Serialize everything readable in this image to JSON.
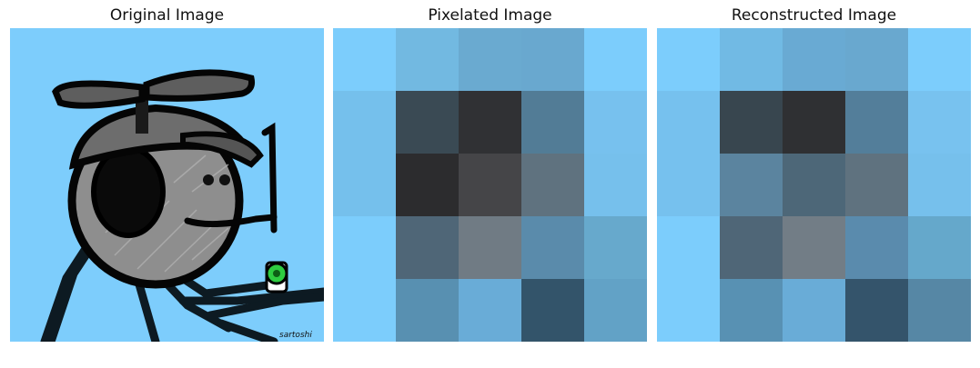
{
  "titles": {
    "original": "Original Image",
    "pixelated": "Pixelated Image",
    "reconstructed": "Reconstructed Image"
  },
  "original": {
    "background_color": "#7dcdfc",
    "signature": "sartoshi"
  },
  "pixelated_grid": [
    [
      "#7ccdfc",
      "#72b9e1",
      "#6aaad0",
      "#69a8cf",
      "#7ccdfc"
    ],
    [
      "#75c0ec",
      "#3a4a54",
      "#303134",
      "#527c96",
      "#77c1ee"
    ],
    [
      "#75c0ec",
      "#2c2c2e",
      "#454548",
      "#5f727f",
      "#76c0ec"
    ],
    [
      "#7ccdfc",
      "#4f6677",
      "#707b84",
      "#5a8bab",
      "#67a9cc"
    ],
    [
      "#7ccdfc",
      "#5890b1",
      "#69acd7",
      "#33546a",
      "#62a2c6"
    ]
  ],
  "reconstructed_grid": [
    [
      "#7ccdfc",
      "#71bae4",
      "#69aad3",
      "#69a8cf",
      "#7ccdfc"
    ],
    [
      "#76c1ee",
      "#38464f",
      "#2f3033",
      "#537e9a",
      "#78c2ef"
    ],
    [
      "#76c1ee",
      "#5b849f",
      "#4d6778",
      "#5f727f",
      "#76c0ec"
    ],
    [
      "#7ccdfc",
      "#4f6677",
      "#727d86",
      "#5a8bad",
      "#65a8cb"
    ],
    [
      "#7ccdfc",
      "#5891b3",
      "#69acd7",
      "#34546b",
      "#5687a5"
    ]
  ]
}
